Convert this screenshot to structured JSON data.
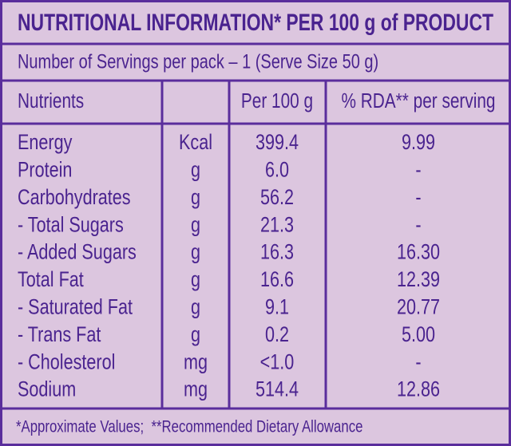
{
  "title": "NUTRITIONAL INFORMATION* PER 100 g of PRODUCT",
  "servings": "Number of Servings per pack – 1 (Serve Size 50 g)",
  "table": {
    "header": [
      "Nutrients",
      "Per 100 g",
      "% RDA** per serving"
    ],
    "rows": [
      [
        "Energy",
        "Kcal",
        "399.4",
        "9.99"
      ],
      [
        "Protein",
        "g",
        "6.0",
        "-"
      ],
      [
        "Carbohydrates",
        "g",
        "56.2",
        "-"
      ],
      [
        "- Total Sugars",
        "g",
        "21.3",
        "-"
      ],
      [
        "- Added Sugars",
        "g",
        "16.3",
        "16.30"
      ],
      [
        "Total Fat",
        "g",
        "16.6",
        "12.39"
      ],
      [
        "- Saturated Fat",
        "g",
        "9.1",
        "20.77"
      ],
      [
        "- Trans Fat",
        "g",
        "0.2",
        "5.00"
      ],
      [
        "- Cholesterol",
        "mg",
        "<1.0",
        "-"
      ],
      [
        "Sodium",
        "mg",
        "514.4",
        "12.86"
      ]
    ]
  },
  "footer": "*Approximate Values;  **Recommended Dietary Allowance"
}
